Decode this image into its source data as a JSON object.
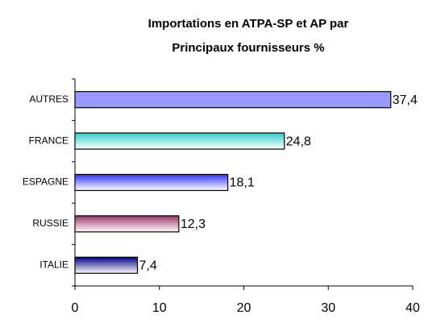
{
  "chart_data": {
    "type": "hbar",
    "title": [
      "Importations en ATPA-SP et AP  par",
      "Principaux fournisseurs %"
    ],
    "categories": [
      "AUTRES",
      "FRANCE",
      "ESPAGNE",
      "RUSSIE",
      "ITALIE"
    ],
    "values": [
      37.4,
      24.8,
      18.1,
      12.3,
      7.4
    ],
    "value_labels": [
      "37,4",
      "24,8",
      "18,1",
      "12,3",
      "7,4"
    ],
    "colors": [
      "#9999ff",
      "#33cccc",
      "#3333ff",
      "#993366",
      "#000080"
    ],
    "xlim": [
      0,
      40
    ],
    "xticks": [
      0,
      10,
      20,
      30,
      40
    ],
    "grid": false
  }
}
